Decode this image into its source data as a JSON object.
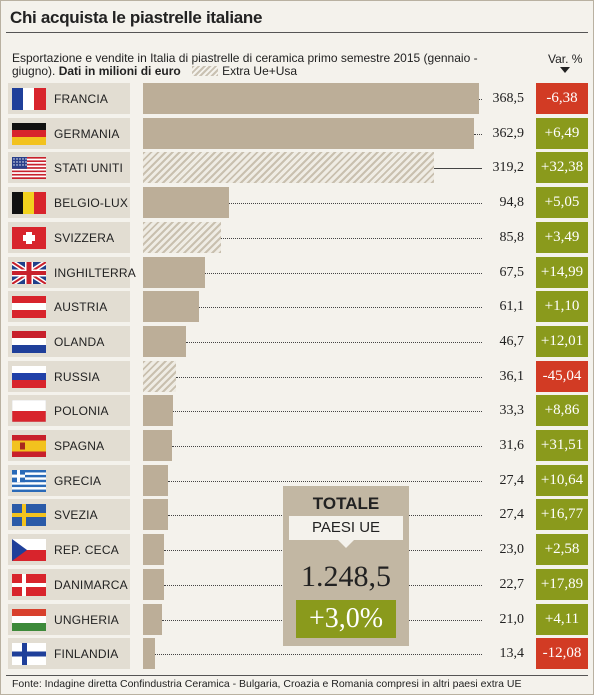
{
  "title": "Chi acquista le piastrelle italiane",
  "subtitle_text": "Esportazione e vendite in Italia di piastrelle di ceramica primo semestre 2015 (gennaio - giugno).",
  "subtitle_units": "Dati in milioni di euro",
  "legend_label": "Extra Ue+Usa",
  "var_header": "Var. %",
  "footer": "Fonte: Indagine diretta Confindustria Ceramica - Bulgaria, Croazia e Romania compresi in altri paesi extra UE",
  "total": {
    "title": "TOTALE",
    "subtitle": "PAESI UE",
    "value": "1.248,5",
    "var": "+3,0%"
  },
  "colors": {
    "bar": "#bcae98",
    "positive": "#8a9a1c",
    "negative": "#d23b24"
  },
  "chart_data": {
    "type": "bar",
    "orientation": "horizontal",
    "title": "Chi acquista le piastrelle italiane",
    "unit": "milioni di euro",
    "categories": [
      "FRANCIA",
      "GERMANIA",
      "STATI UNITI",
      "BELGIO-LUX",
      "SVIZZERA",
      "INGHILTERRA",
      "AUSTRIA",
      "OLANDA",
      "RUSSIA",
      "POLONIA",
      "SPAGNA",
      "GRECIA",
      "SVEZIA",
      "REP. CECA",
      "DANIMARCA",
      "UNGHERIA",
      "FINLANDIA"
    ],
    "values": [
      368.5,
      362.9,
      319.2,
      94.8,
      85.8,
      67.5,
      61.1,
      46.7,
      36.1,
      33.3,
      31.6,
      27.4,
      27.4,
      23.0,
      22.7,
      21.0,
      13.4
    ],
    "value_labels": [
      "368,5",
      "362,9",
      "319,2",
      "94,8",
      "85,8",
      "67,5",
      "61,1",
      "46,7",
      "36,1",
      "33,3",
      "31,6",
      "27,4",
      "27,4",
      "23,0",
      "22,7",
      "21,0",
      "13,4"
    ],
    "var_pct": [
      -6.38,
      6.49,
      32.38,
      5.05,
      3.49,
      14.99,
      1.1,
      12.01,
      -45.04,
      8.86,
      31.51,
      10.64,
      16.77,
      2.58,
      17.89,
      4.11,
      -12.08
    ],
    "var_labels": [
      "-6,38",
      "+6,49",
      "+32,38",
      "+5,05",
      "+3,49",
      "+14,99",
      "+1,10",
      "+12,01",
      "-45,04",
      "+8,86",
      "+31,51",
      "+10,64",
      "+16,77",
      "+2,58",
      "+17,89",
      "+4,11",
      "-12,08"
    ],
    "extra_ue_usa": [
      false,
      false,
      true,
      false,
      true,
      false,
      false,
      false,
      true,
      false,
      false,
      false,
      false,
      false,
      false,
      false,
      false
    ],
    "flag_icons": [
      "flag-france-icon",
      "flag-germany-icon",
      "flag-usa-icon",
      "flag-belgium-icon",
      "flag-switzerland-icon",
      "flag-uk-icon",
      "flag-austria-icon",
      "flag-netherlands-icon",
      "flag-russia-icon",
      "flag-poland-icon",
      "flag-spain-icon",
      "flag-greece-icon",
      "flag-sweden-icon",
      "flag-czech-icon",
      "flag-denmark-icon",
      "flag-hungary-icon",
      "flag-finland-icon"
    ],
    "legend": [
      {
        "label": "Extra Ue+Usa",
        "style": "hatched"
      }
    ]
  }
}
